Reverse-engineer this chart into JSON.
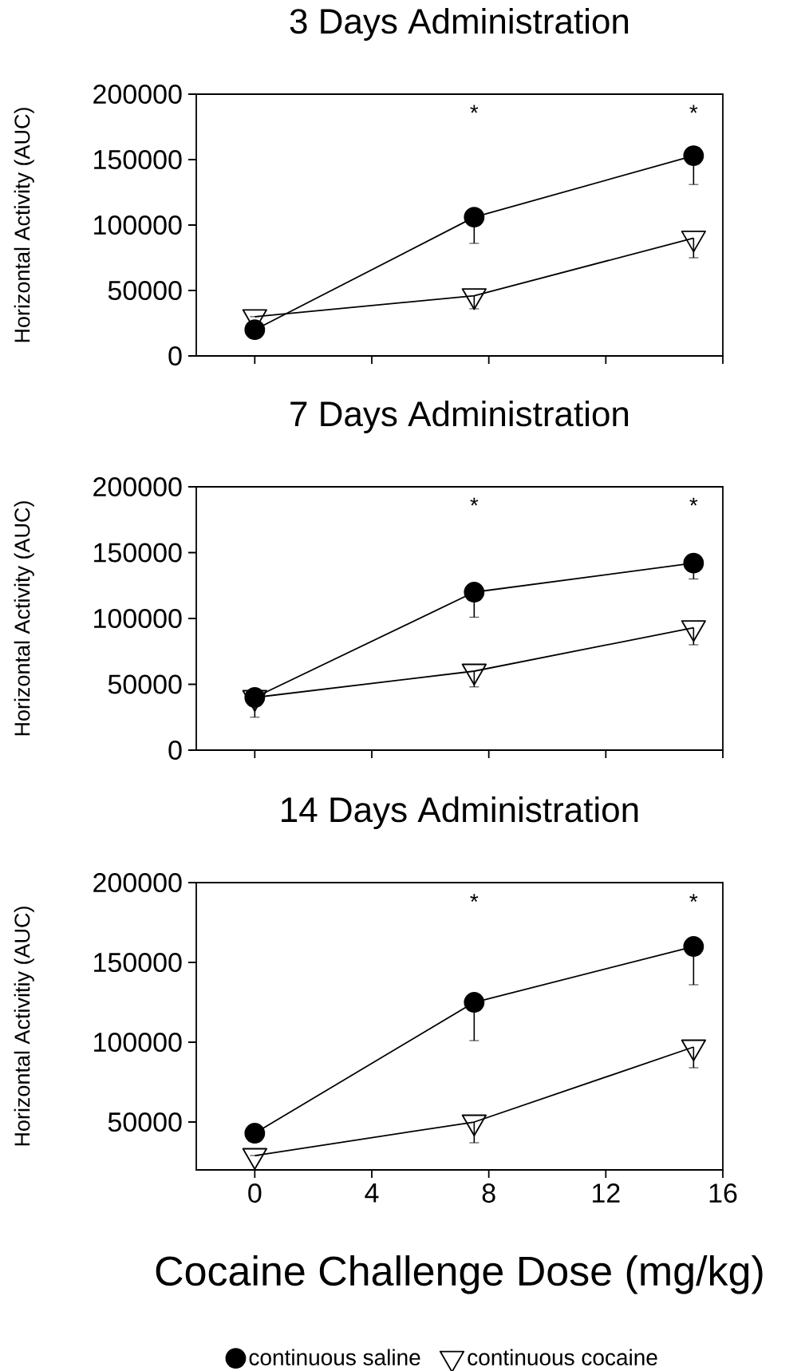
{
  "chart_data": [
    {
      "type": "line",
      "title": "3 Days Administration",
      "ylabel": "Horizontal Activity (AUC)",
      "x": [
        0,
        7.5,
        15
      ],
      "xlim": [
        -2,
        16
      ],
      "xticks": [
        0,
        4,
        8,
        12,
        16
      ],
      "ylim": [
        0,
        200000
      ],
      "yticks": [
        0,
        50000,
        100000,
        150000,
        200000
      ],
      "tick_labels": "y",
      "line_style": "solid",
      "series": [
        {
          "color": "#000000",
          "marker": "circle",
          "values": [
            20000,
            106000,
            153000
          ],
          "errors": [
            null,
            [
              86000,
              106000
            ],
            [
              131000,
              153000
            ]
          ]
        },
        {
          "color": "#000000",
          "marker": "triangle",
          "values": [
            30000,
            46000,
            90000
          ],
          "errors": [
            null,
            [
              36000,
              46000
            ],
            [
              75000,
              90000
            ]
          ]
        }
      ],
      "annotations": [
        "*",
        "*"
      ]
    },
    {
      "type": "line",
      "title": "7 Days Administration",
      "ylabel": "Horizontal Activity (AUC)",
      "x": [
        0,
        7.5,
        15
      ],
      "xlim": [
        -2,
        16
      ],
      "xticks": [
        0,
        4,
        8,
        12,
        16
      ],
      "ylim": [
        0,
        200000
      ],
      "yticks": [
        0,
        50000,
        100000,
        150000,
        200000
      ],
      "tick_labels": "y",
      "line_style": "solid",
      "series": [
        {
          "color": "#000000",
          "marker": "circle",
          "values": [
            40000,
            120000,
            142000
          ],
          "errors": [
            [
              25000,
              40000
            ],
            [
              101000,
              120000
            ],
            [
              130000,
              142000
            ]
          ]
        },
        {
          "color": "#000000",
          "marker": "triangle",
          "values": [
            40000,
            60000,
            93000
          ],
          "errors": [
            null,
            [
              48000,
              60000
            ],
            [
              80000,
              93000
            ]
          ]
        }
      ],
      "annotations": [
        "*",
        "*"
      ]
    },
    {
      "type": "line",
      "title": "14 Days Administration",
      "ylabel": "Horizontal Activitiy (AUC)",
      "xlabel": "Cocaine Challenge Dose (mg/kg)",
      "x": [
        0,
        7.5,
        15
      ],
      "xlim": [
        -2,
        16
      ],
      "xticks": [
        0,
        4,
        8,
        12,
        16
      ],
      "ylim": [
        20000,
        200000
      ],
      "yticks": [
        50000,
        100000,
        150000,
        200000
      ],
      "line_style": "solid",
      "legend": "bottom",
      "series": [
        {
          "name": "continuous saline",
          "color": "#000000",
          "marker": "circle",
          "values": [
            43000,
            125000,
            160000
          ],
          "errors": [
            null,
            [
              101000,
              125000
            ],
            [
              136000,
              160000
            ]
          ]
        },
        {
          "name": "continuous cocaine",
          "color": "#000000",
          "marker": "triangle",
          "values": [
            29000,
            50000,
            97000
          ],
          "errors": [
            null,
            [
              37000,
              50000
            ],
            [
              84000,
              97000
            ]
          ]
        }
      ],
      "annotations": [
        "*",
        "*"
      ]
    }
  ]
}
